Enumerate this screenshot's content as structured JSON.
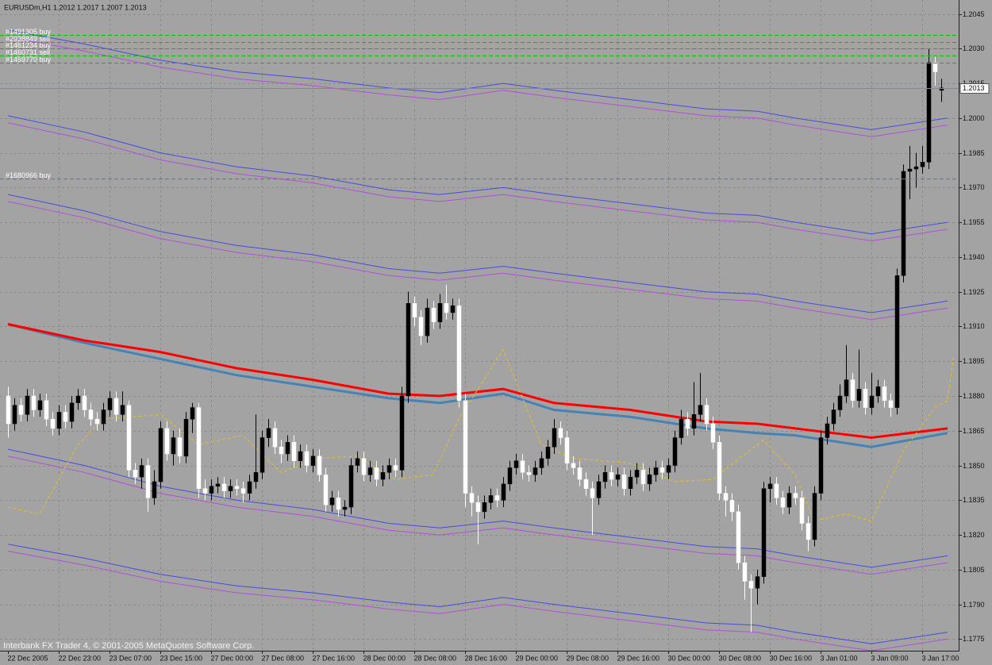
{
  "chart_data": {
    "type": "candlestick",
    "title": "EURUSDm,H1  1.2012 1.2017 1.2007 1.2013",
    "footer": "Interbank FX Trader 4, © 2001-2005 MetaQuotes Software Corp.",
    "grid": true,
    "xlim": [
      -1.25,
      149.75
    ],
    "ylim": [
      1.177,
      1.2051
    ],
    "yticks": [
      1.2045,
      {
        "value": 1.203,
        "label": "1.2030"
      },
      1.2015,
      {
        "value": 1.2,
        "label": "1.2000"
      },
      1.1985,
      {
        "value": 1.197,
        "label": "1.1970"
      },
      1.1955,
      {
        "value": 1.194,
        "label": "1.1940"
      },
      1.1925,
      {
        "value": 1.191,
        "label": "1.1910"
      },
      1.1895,
      {
        "value": 1.188,
        "label": "1.1880"
      },
      1.1865,
      {
        "value": 1.185,
        "label": "1.1850"
      },
      1.1835,
      {
        "value": 1.182,
        "label": "1.1820"
      },
      1.1805,
      {
        "value": 1.179,
        "label": "1.1790"
      },
      1.1775
    ],
    "xticks": [
      {
        "value": 0,
        "label": "22 Dec 2005"
      },
      {
        "value": 8,
        "label": "22 Dec 23:00"
      },
      {
        "value": 16,
        "label": "23 Dec 07:00"
      },
      {
        "value": 24,
        "label": "23 Dec 15:00"
      },
      {
        "value": 32,
        "label": "27 Dec 00:00"
      },
      {
        "value": 40,
        "label": "27 Dec 08:00"
      },
      {
        "value": 48,
        "label": "27 Dec 16:00"
      },
      {
        "value": 56,
        "label": "28 Dec 00:00"
      },
      {
        "value": 64,
        "label": "28 Dec 08:00"
      },
      {
        "value": 72,
        "label": "28 Dec 16:00"
      },
      {
        "value": 80,
        "label": "29 Dec 00:00"
      },
      {
        "value": 88,
        "label": "29 Dec 08:00"
      },
      {
        "value": 96,
        "label": "29 Dec 16:00"
      },
      {
        "value": 104,
        "label": "30 Dec 00:00"
      },
      {
        "value": 112,
        "label": "30 Dec 08:00"
      },
      {
        "value": 120,
        "label": "30 Dec 16:00"
      },
      {
        "value": 128,
        "label": "3 Jan 01:00"
      },
      {
        "value": 136,
        "label": "3 Jan 09:00"
      },
      {
        "value": 144,
        "label": "3 Jan 17:00"
      }
    ],
    "up_color": "#000000",
    "down_color": "#ffffff",
    "open": [
      1.188,
      1.1868,
      1.1876,
      1.1872,
      1.188,
      1.1874,
      1.1878,
      1.187,
      1.1866,
      1.1873,
      1.1869,
      1.1877,
      1.188,
      1.1874,
      1.187,
      1.1868,
      1.1874,
      1.1879,
      1.1872,
      1.1876,
      1.1848,
      1.1845,
      1.185,
      1.1836,
      1.1843,
      1.1866,
      1.1855,
      1.1862,
      1.1854,
      1.187,
      1.1875,
      1.184,
      1.1838,
      1.1841,
      1.1842,
      1.1839,
      1.1841,
      1.184,
      1.1838,
      1.1843,
      1.1847,
      1.1862,
      1.1866,
      1.1858,
      1.1855,
      1.186,
      1.1852,
      1.1856,
      1.185,
      1.1854,
      1.1846,
      1.1833,
      1.1836,
      1.1831,
      1.1832,
      1.185,
      1.1853,
      1.1846,
      1.1849,
      1.1844,
      1.1847,
      1.185,
      1.1848,
      1.188,
      1.192,
      1.1914,
      1.1906,
      1.1918,
      1.1912,
      1.192,
      1.1916,
      1.1919,
      1.1878,
      1.1838,
      1.1834,
      1.183,
      1.1834,
      1.1837,
      1.1835,
      1.1842,
      1.1849,
      1.1852,
      1.1847,
      1.1846,
      1.1849,
      1.1853,
      1.1858,
      1.1866,
      1.1862,
      1.1851,
      1.1849,
      1.1844,
      1.184,
      1.1836,
      1.1843,
      1.1847,
      1.1844,
      1.1846,
      1.184,
      1.1845,
      1.1848,
      1.1842,
      1.1846,
      1.1849,
      1.1847,
      1.185,
      1.1862,
      1.187,
      1.1866,
      1.1872,
      1.1876,
      1.1868,
      1.186,
      1.1838,
      1.1835,
      1.183,
      1.1808,
      1.18,
      1.1797,
      1.1802,
      1.184,
      1.1842,
      1.1836,
      1.1832,
      1.1838,
      1.1836,
      1.1825,
      1.1818,
      1.1838,
      1.1862,
      1.1868,
      1.1874,
      1.188,
      1.1887,
      1.1878,
      1.1883,
      1.1875,
      1.188,
      1.1884,
      1.1878,
      1.1875,
      1.1932,
      1.1977,
      1.1978,
      1.1979,
      1.1981,
      1.2024,
      1.2012
    ],
    "high": [
      1.1884,
      1.1879,
      1.1879,
      1.1883,
      1.1883,
      1.1881,
      1.1881,
      1.1873,
      1.1876,
      1.1876,
      1.188,
      1.1883,
      1.1883,
      1.1877,
      1.1873,
      1.1877,
      1.1882,
      1.1882,
      1.1882,
      1.1878,
      1.1851,
      1.1853,
      1.1853,
      1.1848,
      1.1869,
      1.1869,
      1.1865,
      1.1866,
      1.1873,
      1.1877,
      1.1877,
      1.1844,
      1.1844,
      1.1845,
      1.1845,
      1.1844,
      1.1844,
      1.1843,
      1.1846,
      1.1872,
      1.1865,
      1.187,
      1.1869,
      1.1861,
      1.1863,
      1.1863,
      1.1859,
      1.1859,
      1.1857,
      1.1857,
      1.1849,
      1.1839,
      1.1839,
      1.1835,
      1.1853,
      1.1856,
      1.1856,
      1.1852,
      1.1852,
      1.185,
      1.1853,
      1.1853,
      1.1884,
      1.1925,
      1.1923,
      1.1917,
      1.1922,
      1.1921,
      1.1924,
      1.1928,
      1.1922,
      1.1922,
      1.1881,
      1.1841,
      1.1837,
      1.1837,
      1.184,
      1.184,
      1.1845,
      1.1852,
      1.1855,
      1.1855,
      1.185,
      1.1852,
      1.1856,
      1.1861,
      1.187,
      1.1869,
      1.1865,
      1.1854,
      1.1852,
      1.1847,
      1.1843,
      1.1846,
      1.185,
      1.185,
      1.1849,
      1.1849,
      1.1848,
      1.1851,
      1.1851,
      1.1849,
      1.1852,
      1.1852,
      1.1853,
      1.1865,
      1.1874,
      1.1873,
      1.1886,
      1.189,
      1.1879,
      1.1871,
      1.1863,
      1.1841,
      1.1838,
      1.1833,
      1.1811,
      1.1803,
      1.1805,
      1.1843,
      1.1845,
      1.1845,
      1.1839,
      1.1841,
      1.1841,
      1.1839,
      1.1828,
      1.1841,
      1.1865,
      1.1871,
      1.1877,
      1.1885,
      1.1902,
      1.189,
      1.19,
      1.1886,
      1.189,
      1.1887,
      1.1887,
      1.1881,
      1.1935,
      1.198,
      1.1988,
      1.1985,
      1.1988,
      1.203,
      1.2027,
      1.2017
    ],
    "low": [
      1.1862,
      1.1865,
      1.1869,
      1.1869,
      1.1871,
      1.1871,
      1.1867,
      1.1863,
      1.1863,
      1.1866,
      1.1866,
      1.1874,
      1.1871,
      1.1867,
      1.1865,
      1.1865,
      1.1871,
      1.1869,
      1.1869,
      1.1845,
      1.1842,
      1.184,
      1.183,
      1.1833,
      1.184,
      1.1852,
      1.185,
      1.1851,
      1.1851,
      1.1864,
      1.1836,
      1.1835,
      1.1835,
      1.1838,
      1.1836,
      1.1836,
      1.1837,
      1.1834,
      1.1835,
      1.184,
      1.1844,
      1.1858,
      1.1855,
      1.1851,
      1.1852,
      1.1849,
      1.1849,
      1.1847,
      1.1847,
      1.1843,
      1.183,
      1.183,
      1.1828,
      1.1828,
      1.1829,
      1.1847,
      1.1843,
      1.1843,
      1.1841,
      1.1841,
      1.1844,
      1.1845,
      1.1845,
      1.1877,
      1.191,
      1.1902,
      1.1903,
      1.1909,
      1.1909,
      1.1913,
      1.1913,
      1.1875,
      1.1832,
      1.1828,
      1.1816,
      1.1827,
      1.1831,
      1.1832,
      1.1832,
      1.1839,
      1.1846,
      1.1844,
      1.1843,
      1.1843,
      1.1846,
      1.185,
      1.1855,
      1.1859,
      1.1848,
      1.1846,
      1.1841,
      1.1837,
      1.182,
      1.1833,
      1.184,
      1.1841,
      1.1841,
      1.1837,
      1.1837,
      1.1842,
      1.1839,
      1.1839,
      1.1843,
      1.1844,
      1.1844,
      1.1847,
      1.1859,
      1.1863,
      1.1863,
      1.1869,
      1.1865,
      1.1857,
      1.1835,
      1.1828,
      1.1826,
      1.1805,
      1.1792,
      1.1778,
      1.179,
      1.1799,
      1.1834,
      1.1833,
      1.1829,
      1.1829,
      1.1833,
      1.1822,
      1.1813,
      1.1815,
      1.1835,
      1.1859,
      1.1865,
      1.1871,
      1.1877,
      1.1875,
      1.1875,
      1.1872,
      1.1872,
      1.1877,
      1.1875,
      1.1871,
      1.1872,
      1.1929,
      1.1965,
      1.197,
      1.1976,
      1.1978,
      1.2014,
      1.2007
    ],
    "close": [
      1.1868,
      1.1876,
      1.1872,
      1.188,
      1.1874,
      1.1878,
      1.187,
      1.1866,
      1.1873,
      1.1869,
      1.1877,
      1.188,
      1.1874,
      1.187,
      1.1868,
      1.1874,
      1.1879,
      1.1872,
      1.1876,
      1.1848,
      1.1845,
      1.185,
      1.1836,
      1.1843,
      1.1866,
      1.1855,
      1.1862,
      1.1854,
      1.187,
      1.1875,
      1.184,
      1.1838,
      1.1841,
      1.1842,
      1.1839,
      1.1841,
      1.184,
      1.1838,
      1.1843,
      1.1847,
      1.1862,
      1.1866,
      1.1858,
      1.1855,
      1.186,
      1.1852,
      1.1856,
      1.185,
      1.1854,
      1.1846,
      1.1833,
      1.1836,
      1.1831,
      1.1832,
      1.185,
      1.1853,
      1.1846,
      1.1849,
      1.1844,
      1.1847,
      1.185,
      1.1848,
      1.188,
      1.192,
      1.1914,
      1.1906,
      1.1918,
      1.1912,
      1.192,
      1.1916,
      1.1919,
      1.1878,
      1.1838,
      1.1834,
      1.183,
      1.1834,
      1.1837,
      1.1835,
      1.1842,
      1.1849,
      1.1852,
      1.1847,
      1.1846,
      1.1849,
      1.1853,
      1.1858,
      1.1866,
      1.1862,
      1.1851,
      1.1849,
      1.1844,
      1.184,
      1.1836,
      1.1843,
      1.1847,
      1.1844,
      1.1846,
      1.184,
      1.1845,
      1.1848,
      1.1842,
      1.1846,
      1.1849,
      1.1847,
      1.185,
      1.1862,
      1.187,
      1.1866,
      1.1872,
      1.1876,
      1.1868,
      1.186,
      1.1838,
      1.1835,
      1.183,
      1.1808,
      1.18,
      1.1797,
      1.1802,
      1.184,
      1.1842,
      1.1836,
      1.1832,
      1.1838,
      1.1836,
      1.1825,
      1.1818,
      1.1838,
      1.1862,
      1.1868,
      1.1874,
      1.188,
      1.1887,
      1.1878,
      1.1883,
      1.1875,
      1.188,
      1.1884,
      1.1878,
      1.1875,
      1.1932,
      1.1977,
      1.1978,
      1.1979,
      1.1981,
      1.2024,
      1.202,
      1.2013
    ],
    "indicator_x": [
      0,
      12,
      24,
      36,
      48,
      60,
      68,
      78,
      86,
      98,
      110,
      118,
      124,
      136,
      148
    ],
    "bands": [
      {
        "color": "#4a4ae0",
        "values": [
          1.2038,
          1.2032,
          1.2025,
          1.202,
          1.2017,
          1.2013,
          1.2011,
          1.2015,
          1.2012,
          1.2008,
          1.2004,
          1.2003,
          1.2,
          1.1995,
          1.2
        ]
      },
      {
        "color": "#b050d8",
        "values": [
          1.2035,
          1.2029,
          1.2022,
          1.2017,
          1.2014,
          1.201,
          1.2008,
          1.2012,
          1.2009,
          1.2005,
          1.2001,
          1.2,
          1.1997,
          1.1992,
          1.1997
        ]
      },
      {
        "color": "#4a4ae0",
        "values": [
          1.2001,
          1.1994,
          1.1985,
          1.1979,
          1.1975,
          1.1969,
          1.1967,
          1.197,
          1.1967,
          1.1963,
          1.1959,
          1.1958,
          1.1955,
          1.195,
          1.1955
        ]
      },
      {
        "color": "#b050d8",
        "values": [
          1.1998,
          1.1991,
          1.1982,
          1.1976,
          1.1972,
          1.1966,
          1.1964,
          1.1967,
          1.1964,
          1.196,
          1.1956,
          1.1955,
          1.1952,
          1.1947,
          1.1952
        ]
      },
      {
        "color": "#4a4ae0",
        "values": [
          1.1967,
          1.196,
          1.1951,
          1.1945,
          1.1941,
          1.1935,
          1.1933,
          1.1936,
          1.1933,
          1.1929,
          1.1925,
          1.1924,
          1.1921,
          1.1916,
          1.1921
        ]
      },
      {
        "color": "#b050d8",
        "values": [
          1.1964,
          1.1957,
          1.1948,
          1.1942,
          1.1938,
          1.1932,
          1.193,
          1.1933,
          1.193,
          1.1926,
          1.1922,
          1.1921,
          1.1918,
          1.1913,
          1.1918
        ]
      },
      {
        "color": "#4a4ae0",
        "values": [
          1.1857,
          1.185,
          1.1841,
          1.1835,
          1.1831,
          1.1825,
          1.1823,
          1.1826,
          1.1823,
          1.1819,
          1.1815,
          1.1814,
          1.1811,
          1.1806,
          1.1811
        ]
      },
      {
        "color": "#b050d8",
        "values": [
          1.1854,
          1.1847,
          1.1838,
          1.1832,
          1.1828,
          1.1822,
          1.182,
          1.1823,
          1.182,
          1.1816,
          1.1812,
          1.1811,
          1.1808,
          1.1803,
          1.1808
        ]
      },
      {
        "color": "#4a4ae0",
        "values": [
          1.1816,
          1.181,
          1.1803,
          1.1798,
          1.1795,
          1.1791,
          1.1789,
          1.1793,
          1.179,
          1.1786,
          1.1782,
          1.1781,
          1.1778,
          1.1773,
          1.1778
        ]
      },
      {
        "color": "#b050d8",
        "values": [
          1.1813,
          1.1807,
          1.18,
          1.1795,
          1.1792,
          1.1788,
          1.1786,
          1.179,
          1.1787,
          1.1783,
          1.1779,
          1.1778,
          1.1775,
          1.177,
          1.1775
        ]
      },
      {
        "color": "#4682b4",
        "width": 3,
        "values": [
          1.1911,
          1.1903,
          1.1896,
          1.1889,
          1.1884,
          1.1879,
          1.1877,
          1.1881,
          1.1874,
          1.1871,
          1.1866,
          1.1864,
          1.1863,
          1.1858,
          1.1864
        ]
      },
      {
        "color": "#ff0000",
        "width": 3,
        "values": [
          1.1911,
          1.1904,
          1.1899,
          1.1892,
          1.1887,
          1.1881,
          1.188,
          1.1883,
          1.1877,
          1.1874,
          1.1869,
          1.1868,
          1.1866,
          1.1862,
          1.1866
        ]
      }
    ],
    "signal": {
      "color": "#e8c020",
      "dashed": true,
      "x": [
        0,
        5,
        11,
        15,
        24,
        30,
        37,
        43,
        49,
        55,
        61,
        67,
        71,
        78,
        84,
        89,
        98,
        105,
        111,
        119,
        124,
        127,
        132,
        136,
        141,
        146,
        148,
        149
      ],
      "values": [
        1.1832,
        1.1829,
        1.1859,
        1.187,
        1.1872,
        1.1859,
        1.1863,
        1.1847,
        1.1853,
        1.1854,
        1.1844,
        1.1846,
        1.187,
        1.19,
        1.1859,
        1.1853,
        1.1851,
        1.1843,
        1.1844,
        1.1861,
        1.1846,
        1.1826,
        1.1829,
        1.1826,
        1.1856,
        1.1875,
        1.1878,
        1.1898
      ]
    },
    "order_color": "#00c000",
    "orders": [
      {
        "label": "#1491305 buy",
        "price": 1.2036
      },
      {
        "label": "#2938849 sell",
        "price": 1.2033
      },
      {
        "label": "#1461234 buy",
        "price": 1.203
      },
      {
        "label": "#1460731 sell",
        "price": 1.2027
      },
      {
        "label": "#1459770 buy",
        "price": 1.2024
      },
      {
        "label": "#1680966 buy",
        "price": 1.1974
      }
    ],
    "current_price": 1.2013
  }
}
